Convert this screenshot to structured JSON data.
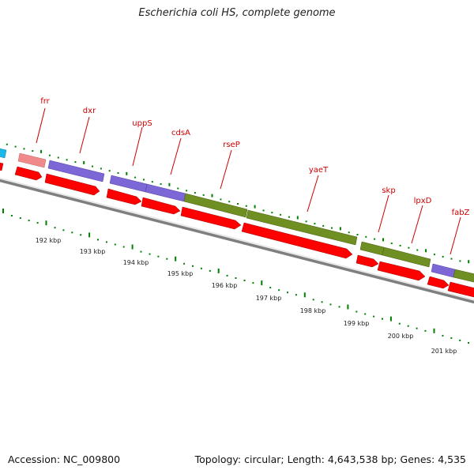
{
  "title": "Escherichia coli HS, complete genome",
  "accession_text": "Accession: NC_009800",
  "topology_text": "Topology: circular; Length: 4,643,538 bp; Genes: 4,535",
  "colors": {
    "cds_forward": "#ff0000",
    "ruler_ticks": "#008000",
    "label_color": "#cc0000",
    "backbone": "#8a8a8a",
    "feature_purple": "#7d67d6",
    "feature_green": "#6f8f22",
    "feature_pink": "#f08a8a",
    "feature_cyan": "#19b8e8"
  },
  "gene_labels": [
    {
      "id": "frr",
      "text": "frr"
    },
    {
      "id": "dxr",
      "text": "dxr"
    },
    {
      "id": "uppS",
      "text": "uppS"
    },
    {
      "id": "cdsA",
      "text": "cdsA"
    },
    {
      "id": "rseP",
      "text": "rseP"
    },
    {
      "id": "yaeT",
      "text": "yaeT"
    },
    {
      "id": "skp",
      "text": "skp"
    },
    {
      "id": "lpxD",
      "text": "lpxD"
    },
    {
      "id": "fabZ",
      "text": "fabZ"
    }
  ],
  "ruler_labels": [
    {
      "id": "192",
      "text": "192 kbp"
    },
    {
      "id": "193",
      "text": "193 kbp"
    },
    {
      "id": "194",
      "text": "194 kbp"
    },
    {
      "id": "195",
      "text": "195 kbp"
    },
    {
      "id": "196",
      "text": "196 kbp"
    },
    {
      "id": "197",
      "text": "197 kbp"
    },
    {
      "id": "198",
      "text": "198 kbp"
    },
    {
      "id": "199",
      "text": "199 kbp"
    },
    {
      "id": "200",
      "text": "200 kbp"
    },
    {
      "id": "201",
      "text": "201 kbp"
    }
  ]
}
